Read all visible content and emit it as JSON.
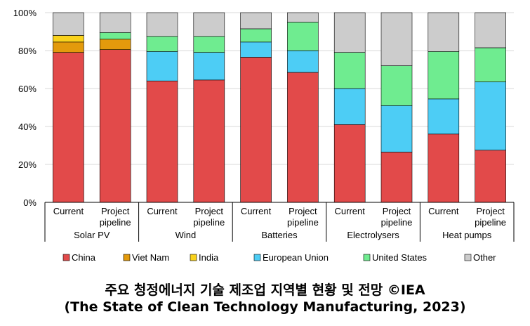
{
  "chart_data": {
    "type": "bar",
    "stacked": true,
    "ylim": [
      0,
      100
    ],
    "yticks": [
      "0%",
      "20%",
      "40%",
      "60%",
      "80%",
      "100%"
    ],
    "groups": [
      {
        "name": "Solar PV",
        "categories": [
          "Current",
          "Project pipeline"
        ]
      },
      {
        "name": "Wind",
        "categories": [
          "Current",
          "Project pipeline"
        ]
      },
      {
        "name": "Batteries",
        "categories": [
          "Current",
          "Project pipeline"
        ]
      },
      {
        "name": "Electrolysers",
        "categories": [
          "Current",
          "Project pipeline"
        ]
      },
      {
        "name": "Heat pumps",
        "categories": [
          "Current",
          "Project pipeline"
        ]
      }
    ],
    "series": [
      {
        "name": "China",
        "color": "#e24a4a",
        "values": [
          79,
          80.5,
          64,
          64.5,
          76.5,
          68.5,
          41,
          26.5,
          36,
          27.5
        ]
      },
      {
        "name": "Viet Nam",
        "color": "#e39a0c",
        "values": [
          5.5,
          5.5,
          0,
          0,
          0,
          0,
          0,
          0,
          0,
          0
        ]
      },
      {
        "name": "India",
        "color": "#f9d21c",
        "values": [
          3.5,
          0,
          0,
          0,
          0,
          0,
          0,
          0,
          0,
          0
        ]
      },
      {
        "name": "European Union",
        "color": "#4dcdf5",
        "values": [
          0,
          0,
          15.5,
          14.5,
          8,
          11.5,
          19,
          24.5,
          18.5,
          36
        ]
      },
      {
        "name": "United States",
        "color": "#6fec90",
        "values": [
          0,
          3.5,
          8,
          8.5,
          7,
          15,
          19,
          21,
          25,
          18
        ]
      },
      {
        "name": "Other",
        "color": "#cccccc",
        "values": [
          12,
          10.5,
          12.5,
          12.5,
          8.5,
          5,
          21,
          28,
          20.5,
          18.5
        ]
      }
    ],
    "legend_position": "bottom"
  },
  "caption": {
    "line1": "주요 청정에너지 기술 제조업 지역별 현황 및 전망 ©IEA",
    "line2": "(The State of Clean Technology Manufacturing, 2023)"
  }
}
